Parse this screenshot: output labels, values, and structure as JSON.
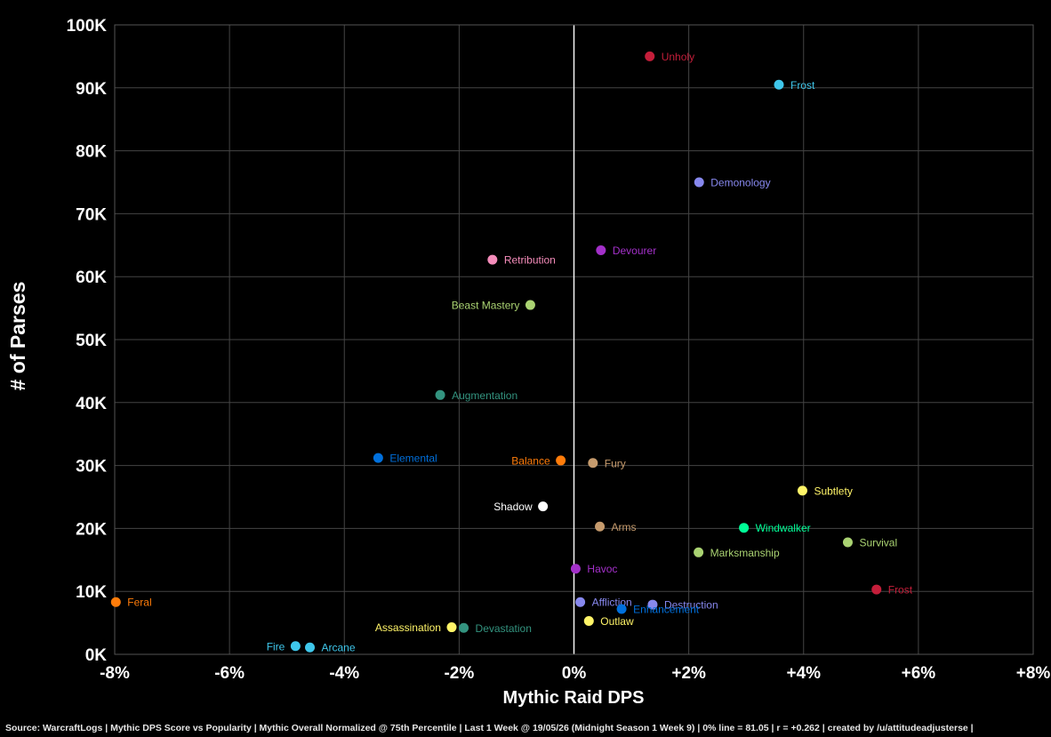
{
  "chart_data": {
    "type": "scatter",
    "xlabel": "Mythic Raid DPS",
    "ylabel": "# of Parses",
    "xlim": [
      -8,
      8
    ],
    "ylim": [
      0,
      100000
    ],
    "x_ticks": [
      -8,
      -6,
      -4,
      -2,
      0,
      2,
      4,
      6,
      8
    ],
    "x_tick_labels": [
      "-8%",
      "-6%",
      "-4%",
      "-2%",
      "0%",
      "+2%",
      "+4%",
      "+6%",
      "+8%"
    ],
    "y_ticks": [
      0,
      10000,
      20000,
      30000,
      40000,
      50000,
      60000,
      70000,
      80000,
      90000,
      100000
    ],
    "y_tick_labels": [
      "0K",
      "10K",
      "20K",
      "30K",
      "40K",
      "50K",
      "60K",
      "70K",
      "80K",
      "90K",
      "100K"
    ],
    "grid": true,
    "zero_line": true,
    "points": [
      {
        "label": "Unholy",
        "x": 1.32,
        "y": 95000,
        "color": "#c41e3a",
        "side": "right"
      },
      {
        "label": "Frost",
        "x": 3.57,
        "y": 90500,
        "color": "#3fc7eb",
        "side": "right"
      },
      {
        "label": "Demonology",
        "x": 2.18,
        "y": 75000,
        "color": "#8788ee",
        "side": "right"
      },
      {
        "label": "Devourer",
        "x": 0.47,
        "y": 64200,
        "color": "#a330c9",
        "side": "right"
      },
      {
        "label": "Retribution",
        "x": -1.42,
        "y": 62700,
        "color": "#f48cba",
        "side": "right"
      },
      {
        "label": "Beast Mastery",
        "x": -0.76,
        "y": 55500,
        "color": "#aad372",
        "side": "left"
      },
      {
        "label": "Augmentation",
        "x": -2.33,
        "y": 41200,
        "color": "#33937f",
        "side": "right"
      },
      {
        "label": "Elemental",
        "x": -3.41,
        "y": 31200,
        "color": "#0070dd",
        "side": "right"
      },
      {
        "label": "Balance",
        "x": -0.23,
        "y": 30800,
        "color": "#ff7c0a",
        "side": "left"
      },
      {
        "label": "Fury",
        "x": 0.33,
        "y": 30400,
        "color": "#c69b6d",
        "side": "right"
      },
      {
        "label": "Subtlety",
        "x": 3.98,
        "y": 26000,
        "color": "#fff468",
        "side": "right"
      },
      {
        "label": "Shadow",
        "x": -0.54,
        "y": 23500,
        "color": "#ffffff",
        "side": "left"
      },
      {
        "label": "Arms",
        "x": 0.45,
        "y": 20300,
        "color": "#c69b6d",
        "side": "right"
      },
      {
        "label": "Windwalker",
        "x": 2.96,
        "y": 20100,
        "color": "#00ff98",
        "side": "right"
      },
      {
        "label": "Survival",
        "x": 4.77,
        "y": 17800,
        "color": "#aad372",
        "side": "right"
      },
      {
        "label": "Marksmanship",
        "x": 2.17,
        "y": 16200,
        "color": "#aad372",
        "side": "right"
      },
      {
        "label": "Havoc",
        "x": 0.03,
        "y": 13600,
        "color": "#a330c9",
        "side": "right"
      },
      {
        "label": "Frost",
        "x": 5.27,
        "y": 10300,
        "color": "#c41e3a",
        "side": "right"
      },
      {
        "label": "Feral",
        "x": -7.98,
        "y": 8300,
        "color": "#ff7c0a",
        "side": "right"
      },
      {
        "label": "Affliction",
        "x": 0.11,
        "y": 8300,
        "color": "#8788ee",
        "side": "right"
      },
      {
        "label": "Destruction",
        "x": 1.37,
        "y": 7900,
        "color": "#8788ee",
        "side": "right"
      },
      {
        "label": "Enhancement",
        "x": 0.83,
        "y": 7200,
        "color": "#0070dd",
        "side": "right"
      },
      {
        "label": "Outlaw",
        "x": 0.26,
        "y": 5300,
        "color": "#fff468",
        "side": "right"
      },
      {
        "label": "Assassination",
        "x": -2.13,
        "y": 4300,
        "color": "#fff468",
        "side": "left"
      },
      {
        "label": "Devastation",
        "x": -1.92,
        "y": 4200,
        "color": "#33937f",
        "side": "right"
      },
      {
        "label": "Fire",
        "x": -4.85,
        "y": 1300,
        "color": "#3fc7eb",
        "side": "left"
      },
      {
        "label": "Arcane",
        "x": -4.6,
        "y": 1100,
        "color": "#3fc7eb",
        "side": "right"
      }
    ]
  },
  "footer": "Source: WarcraftLogs | Mythic DPS Score vs Popularity | Mythic Overall Normalized @ 75th Percentile | Last 1 Week @ 19/05/26 (Midnight Season 1 Week 9) | 0% line = 81.05 | r = +0.262 | created by /u/attitudeadjusterse |"
}
